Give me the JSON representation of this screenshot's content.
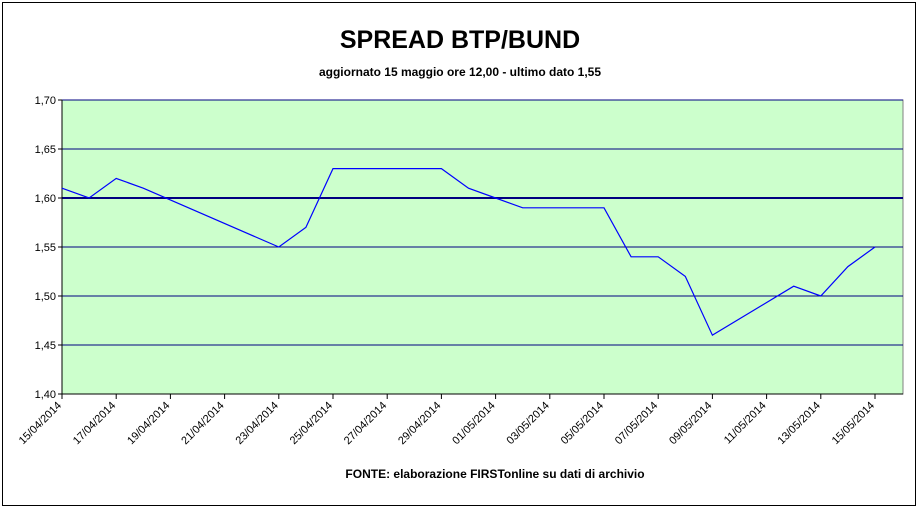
{
  "chart_data": {
    "type": "line",
    "title": "SPREAD BTP/BUND",
    "subtitle": "aggiornato 15 maggio ore 12,00 - ultimo dato 1,55",
    "source": "FONTE:  elaborazione FIRSTonline su dati di archivio",
    "xlabel": "",
    "ylabel": "",
    "ylim": [
      1.4,
      1.7
    ],
    "y_ticks": [
      "1,40",
      "1,45",
      "1,50",
      "1,55",
      "1,60",
      "1,65",
      "1,70"
    ],
    "x_tick_labels": [
      "15/04/2014",
      "17/04/2014",
      "19/04/2014",
      "21/04/2014",
      "23/04/2014",
      "25/04/2014",
      "27/04/2014",
      "29/04/2014",
      "01/05/2014",
      "03/05/2014",
      "05/05/2014",
      "07/05/2014",
      "09/05/2014",
      "11/05/2014",
      "13/05/2014",
      "15/05/2014"
    ],
    "reference_line": 1.6,
    "grid": true,
    "legend": "none",
    "plot_background": "#ccffcc",
    "line_color": "#0000ff",
    "gridline_color": "#000080",
    "series": [
      {
        "x": [
          "15/04/2014",
          "16/04/2014",
          "17/04/2014",
          "18/04/2014",
          "23/04/2014",
          "24/04/2014",
          "25/04/2014",
          "29/04/2014",
          "30/04/2014",
          "01/05/2014",
          "02/05/2014",
          "05/05/2014",
          "06/05/2014",
          "07/05/2014",
          "08/05/2014",
          "09/05/2014",
          "12/05/2014",
          "13/05/2014",
          "14/05/2014",
          "15/05/2014"
        ],
        "values": [
          1.61,
          1.6,
          1.62,
          1.61,
          1.55,
          1.57,
          1.63,
          1.63,
          1.61,
          1.6,
          1.59,
          1.59,
          1.54,
          1.54,
          1.52,
          1.46,
          1.51,
          1.5,
          1.53,
          1.55
        ]
      }
    ]
  }
}
